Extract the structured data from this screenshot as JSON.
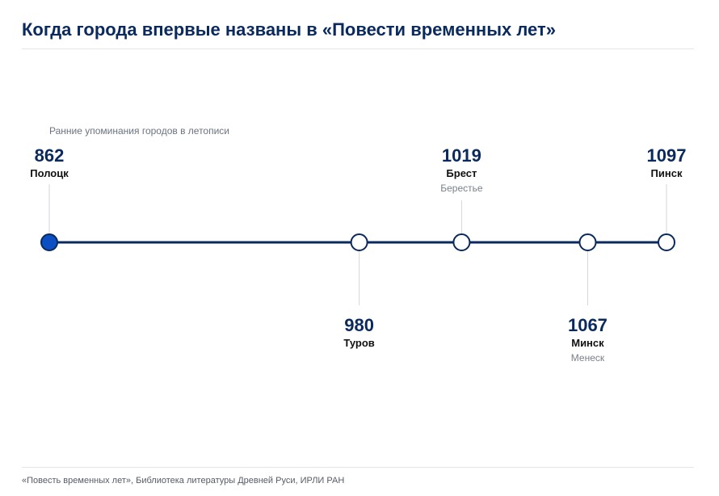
{
  "title": "Когда города впервые названы в «Повести временных лет»",
  "subtitle": "Ранние упоминания городов в летописи",
  "source": "«Повесть временных лет», Библиотека литературы Древней Руси, ИРЛИ РАН",
  "colors": {
    "title": "#0a2a5e",
    "line": "#0a2a5e",
    "accent_fill": "#0b4fc2",
    "rule": "#e3e6ea",
    "connector": "#d3d6db"
  },
  "timeline": {
    "events": [
      {
        "year": "862",
        "city": "Полоцк",
        "old_name": "",
        "position": "above",
        "highlighted": true
      },
      {
        "year": "980",
        "city": "Туров",
        "old_name": "",
        "position": "below",
        "highlighted": false
      },
      {
        "year": "1019",
        "city": "Брест",
        "old_name": "Берестье",
        "position": "above",
        "highlighted": false
      },
      {
        "year": "1067",
        "city": "Минск",
        "old_name": "Менеск",
        "position": "below",
        "highlighted": false
      },
      {
        "year": "1097",
        "city": "Пинск",
        "old_name": "",
        "position": "above",
        "highlighted": false
      }
    ]
  }
}
